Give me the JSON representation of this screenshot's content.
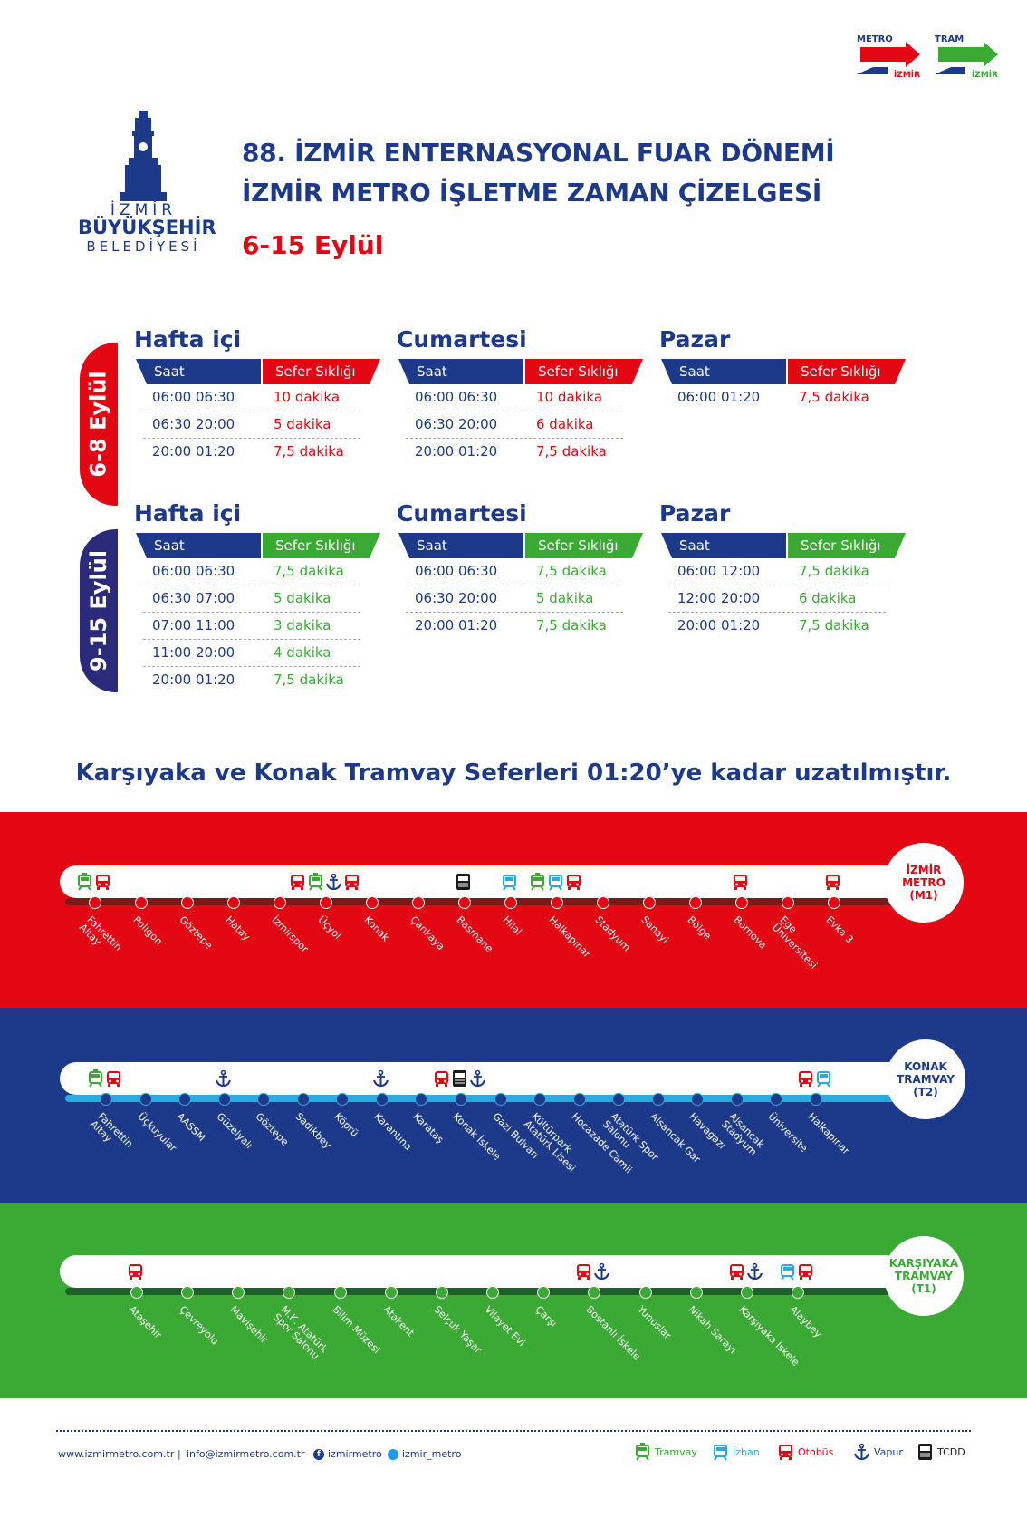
{
  "header": {
    "title_line1": "88. İZMİR ENTERNASYONAL FUAR DÖNEMİ",
    "title_line2": "İZMİR METRO İŞLETME ZAMAN ÇİZELGESİ",
    "date_range": "6-15 Eylül",
    "logo_izmir": "İZMİR",
    "logo_buyuksehir": "BÜYÜKŞEHİR",
    "logo_belediyesi": "BELEDİYESİ",
    "metro_logo_top": "METRO",
    "metro_logo_bottom": "İZMİR",
    "tram_logo_top": "TRAM",
    "tram_logo_bottom": "İZMİR"
  },
  "colors": {
    "navy": "#1d3a8a",
    "red": "#e30613",
    "green": "#3aaa35",
    "blue_band": "#1d3a8a",
    "light_blue": "#29abe2",
    "dark_red": "#7a1a1a",
    "dark_green": "#1f5f2a"
  },
  "table_headers": {
    "saat": "Saat",
    "sefer": "Sefer Sıklığı"
  },
  "periods": [
    {
      "label": "6-8 Eylül",
      "days": [
        {
          "day": "Hafta içi",
          "rows": [
            {
              "time": "06:00  06:30",
              "freq": "10 dakika"
            },
            {
              "time": "06:30  20:00",
              "freq": "5 dakika"
            },
            {
              "time": "20:00  01:20",
              "freq": "7,5 dakika"
            }
          ]
        },
        {
          "day": "Cumartesi",
          "rows": [
            {
              "time": "06:00  06:30",
              "freq": "10 dakika"
            },
            {
              "time": "06:30  20:00",
              "freq": "6 dakika"
            },
            {
              "time": "20:00  01:20",
              "freq": "7,5 dakika"
            }
          ]
        },
        {
          "day": "Pazar",
          "rows": [
            {
              "time": "06:00  01:20",
              "freq": "7,5 dakika"
            }
          ]
        }
      ]
    },
    {
      "label": "9-15 Eylül",
      "days": [
        {
          "day": "Hafta içi",
          "rows": [
            {
              "time": "06:00  06:30",
              "freq": "7,5 dakika"
            },
            {
              "time": "06:30  07:00",
              "freq": "5 dakika"
            },
            {
              "time": "07:00  11:00",
              "freq": "3 dakika"
            },
            {
              "time": "11:00  20:00",
              "freq": "4 dakika"
            },
            {
              "time": "20:00  01:20",
              "freq": "7,5 dakika"
            }
          ]
        },
        {
          "day": "Cumartesi",
          "rows": [
            {
              "time": "06:00  06:30",
              "freq": "7,5 dakika"
            },
            {
              "time": "06:30  20:00",
              "freq": "5 dakika"
            },
            {
              "time": "20:00  01:20",
              "freq": "7,5 dakika"
            }
          ]
        },
        {
          "day": "Pazar",
          "rows": [
            {
              "time": "06:00  12:00",
              "freq": "7,5 dakika"
            },
            {
              "time": "12:00  20:00",
              "freq": "6 dakika"
            },
            {
              "time": "20:00  01:20",
              "freq": "7,5 dakika"
            }
          ]
        }
      ]
    }
  ],
  "notice": "Karşıyaka ve Konak Tramvay Seferleri 01:20’ye kadar uzatılmıştır.",
  "lines": {
    "m1": {
      "badge": "İZMİR\nMETRO\n(M1)",
      "stations": [
        "Fahrettin\nAltay",
        "Poligon",
        "Göztepe",
        "Hatay",
        "İzmirspor",
        "Üçyol",
        "Konak",
        "Çankaya",
        "Basmane",
        "Hilal",
        "Halkapınar",
        "Stadyum",
        "Sanayi",
        "Bölge",
        "Bornova",
        "Ege\nÜniversitesi",
        "Evka 3"
      ],
      "icons": [
        [
          "tram",
          "bus"
        ],
        [],
        [],
        [],
        [],
        [
          "bus",
          "tram",
          "ferry",
          "bus"
        ],
        [],
        [],
        [
          "train"
        ],
        [
          "izban"
        ],
        [
          "tram",
          "izban",
          "bus"
        ],
        [],
        [],
        [],
        [
          "bus"
        ],
        [],
        [
          "bus"
        ]
      ]
    },
    "t2": {
      "badge": "KONAK\nTRAMVAY\n(T2)",
      "stations": [
        "Fahrettin\nAltay",
        "Üçkuyular",
        "AASSM",
        "Güzelyalı",
        "Göztepe",
        "Sadıkbey",
        "Köprü",
        "Karantina",
        "Karataş",
        "Konak İskele",
        "Gazi Bulvarı",
        "Kültürpark\nAtatürk Lisesi",
        "Hocazade Camii",
        "Atatürk Spor\nSalonu",
        "Alsancak Gar",
        "Havagazı",
        "Alsancak\nStadyum",
        "Üniversite",
        "Halkapınar"
      ],
      "icons": [
        [
          "tram",
          "bus"
        ],
        [],
        [],
        [
          "ferry"
        ],
        [],
        [],
        [],
        [
          "ferry"
        ],
        [],
        [
          "bus",
          "train",
          "ferry"
        ],
        [],
        [],
        [],
        [],
        [],
        [],
        [],
        [],
        [
          "bus",
          "izban"
        ]
      ]
    },
    "t1": {
      "badge": "KARŞIYAKA\nTRAMVAY\n(T1)",
      "stations": [
        "Ataşehir",
        "Çevreyolu",
        "Mavişehir",
        "M.K. Atatürk\nSpor Salonu",
        "Bilim Müzesi",
        "Atakent",
        "Selçuk Yaşar",
        "Vilayet Evi",
        "Çarşı",
        "Bostanlı İskele",
        "Yunuslar",
        "Nikah Sarayı",
        "Karşıyaka İskele",
        "Alaybey"
      ],
      "icons": [
        [
          "bus"
        ],
        [],
        [],
        [],
        [],
        [],
        [],
        [],
        [],
        [
          "bus",
          "ferry"
        ],
        [],
        [],
        [
          "bus",
          "ferry"
        ],
        [
          "izban",
          "bus"
        ]
      ]
    }
  },
  "footer": {
    "website": "www.izmirmetro.com.tr",
    "separator": "|",
    "email": "info@izmirmetro.com.tr",
    "facebook": "izmirmetro",
    "twitter": "izmir_metro",
    "legend": [
      {
        "icon": "tram",
        "label": "Tramvay",
        "color": "#3aaa35"
      },
      {
        "icon": "izban",
        "label": "İzban",
        "color": "#29abe2"
      },
      {
        "icon": "bus",
        "label": "Otobüs",
        "color": "#e30613"
      },
      {
        "icon": "ferry",
        "label": "Vapur",
        "color": "#1d3a8a"
      },
      {
        "icon": "train",
        "label": "TCDD",
        "color": "#1a1a1a"
      }
    ]
  }
}
